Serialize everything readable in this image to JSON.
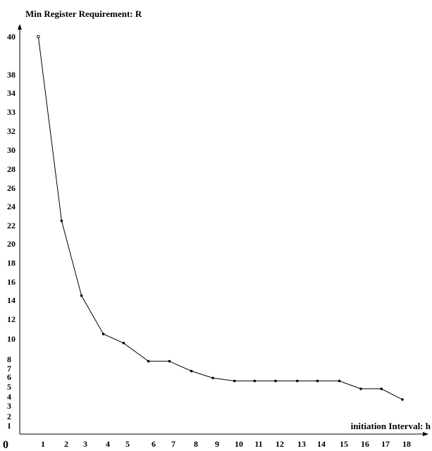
{
  "chart_data": {
    "type": "line",
    "ylabel": "Min Register Requirement: R",
    "xlabel": "initiation Interval: h",
    "origin_label": "0",
    "x_ticks": [
      1,
      2,
      3,
      4,
      5,
      6,
      7,
      8,
      9,
      10,
      11,
      12,
      13,
      14,
      15,
      16,
      17,
      18
    ],
    "x_tick_labels": [
      "1",
      "2",
      "3",
      "4",
      "5",
      "6",
      "7",
      "8",
      "9",
      "10",
      "11",
      "12",
      "13",
      "14",
      "15",
      "16",
      "17",
      "18"
    ],
    "y_ticks": [
      {
        "label": "40",
        "value": 40
      },
      {
        "label": "38",
        "value": 38
      },
      {
        "label": "34",
        "value": 34
      },
      {
        "label": "33",
        "value": 33
      },
      {
        "label": "32",
        "value": 32
      },
      {
        "label": "30",
        "value": 30
      },
      {
        "label": "28",
        "value": 28
      },
      {
        "label": "26",
        "value": 26
      },
      {
        "label": "24",
        "value": 24
      },
      {
        "label": "22",
        "value": 22
      },
      {
        "label": "20",
        "value": 20
      },
      {
        "label": "18",
        "value": 18
      },
      {
        "label": "16",
        "value": 16
      },
      {
        "label": "14",
        "value": 14
      },
      {
        "label": "12",
        "value": 12
      },
      {
        "label": "10",
        "value": 10
      },
      {
        "label": "8",
        "value": 8
      },
      {
        "label": "7",
        "value": 7
      },
      {
        "label": "6",
        "value": 6
      },
      {
        "label": "5",
        "value": 5
      },
      {
        "label": "4",
        "value": 4
      },
      {
        "label": "3",
        "value": 3
      },
      {
        "label": "2",
        "value": 2
      },
      {
        "label": "1",
        "value": 1
      }
    ],
    "series": [
      {
        "x": [
          0.8,
          1.8,
          2.8,
          3.8,
          4.8,
          5.8,
          6.8,
          7.8,
          8.8,
          9.8,
          10.8,
          11.8,
          12.8,
          13.8,
          14.8,
          15.8,
          16.8,
          17.8
        ],
        "y": [
          40,
          22.5,
          14.5,
          10.5,
          9.6,
          7.8,
          7.8,
          6.7,
          5.9,
          5.6,
          5.6,
          5.6,
          5.6,
          5.6,
          5.6,
          4.8,
          4.8,
          3.7
        ]
      }
    ],
    "colors": {
      "line": "#000000",
      "marker": "#000000"
    }
  }
}
